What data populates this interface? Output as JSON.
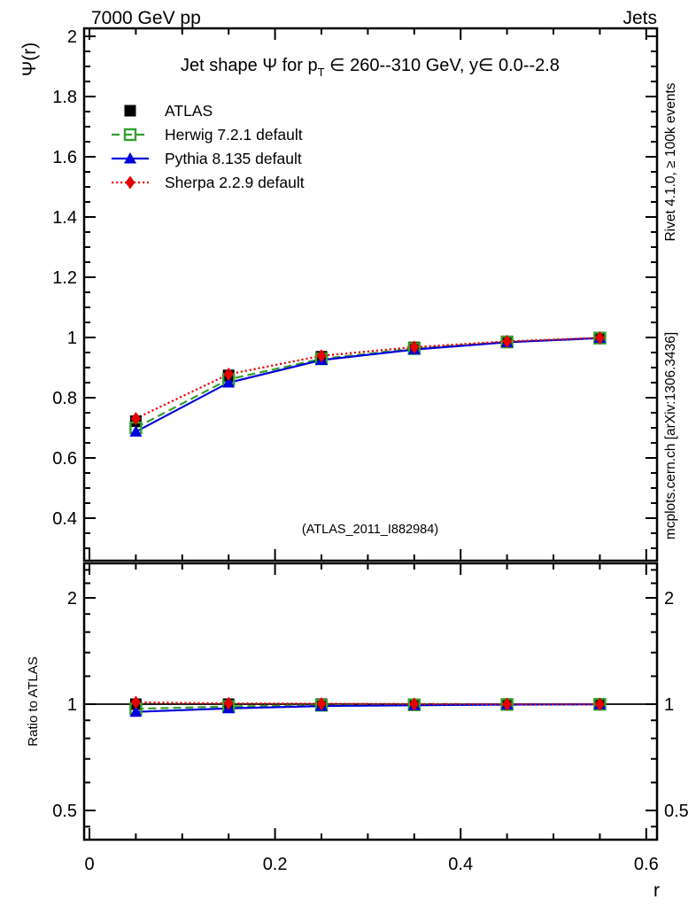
{
  "header": {
    "left_title": "7000 GeV pp",
    "right_title": "Jets"
  },
  "side_captions": {
    "top": "Rivet 4.1.0, ≥ 100k events",
    "bottom": "mcplots.cern.ch [arXiv:1306.3436]"
  },
  "watermark": "(ATLAS_2011_I882984)",
  "main_panel": {
    "title_prefix": "Jet shape Ψ for p",
    "title_sub": "T",
    "title_suffix": " ∈ 260--310 GeV, y∈ 0.0--2.8",
    "ylabel": "Ψ(r)"
  },
  "ratio_panel": {
    "ylabel": "Ratio to ATLAS"
  },
  "xlabel": "r",
  "chart_data": {
    "type": "line",
    "title": "Jet shape Ψ for pT ∈ 260--310 GeV, y∈ 0.0--2.8",
    "xlabel": "r",
    "ylabel": "Ψ(r)",
    "grid": false,
    "legend_position": "top-left",
    "x": [
      0.05,
      0.15,
      0.25,
      0.35,
      0.45,
      0.55
    ],
    "x_axis": {
      "xlim": [
        -0.006,
        0.612
      ],
      "xticks_major": [
        0,
        0.2,
        0.4,
        0.6
      ],
      "xtick_labels": [
        "0",
        "0.2",
        "0.4",
        "0.6"
      ],
      "xminor_step": 0.05
    },
    "main_axis": {
      "scale": "linear",
      "ylim": [
        0.26,
        2.03
      ],
      "yticks_major": [
        2,
        1.8,
        1.6,
        1.4,
        1.2,
        1,
        0.8,
        0.6,
        0.4
      ],
      "ytick_labels": [
        "2",
        "1.8",
        "1.6",
        "1.4",
        "1.2",
        "1",
        "0.8",
        "0.6",
        "0.4"
      ],
      "yminor_step": 0.05
    },
    "ratio_axis": {
      "scale": "log",
      "ylim": [
        0.413,
        2.5
      ],
      "yticks_major": [
        2,
        1,
        0.5
      ],
      "ytick_labels": [
        "2",
        "1",
        "0.5"
      ],
      "yminors": [
        2.4,
        2.2,
        1.8,
        1.6,
        1.4,
        1.2,
        0.9,
        0.8,
        0.7,
        0.6,
        0.45
      ],
      "reference_line": 1.0
    },
    "series": [
      {
        "name": "ATLAS",
        "color": "#000000",
        "marker": "square-filled",
        "line": "none",
        "values": [
          0.722,
          0.874,
          0.936,
          0.967,
          0.987,
          0.999
        ],
        "ratio": [
          1,
          1,
          1,
          1,
          1,
          1
        ]
      },
      {
        "name": "Herwig 7.2.1 default",
        "color": "#33a02c",
        "marker": "square-open",
        "line": "dashed",
        "values": [
          0.7,
          0.861,
          0.929,
          0.963,
          0.985,
          0.998
        ],
        "ratio": [
          0.97,
          0.985,
          0.993,
          0.996,
          0.998,
          0.999
        ]
      },
      {
        "name": "Pythia 8.135 default",
        "color": "#0000dd",
        "marker": "triangle-filled",
        "line": "solid",
        "values": [
          0.687,
          0.85,
          0.925,
          0.96,
          0.984,
          0.998
        ],
        "ratio": [
          0.951,
          0.973,
          0.988,
          0.993,
          0.997,
          0.999
        ]
      },
      {
        "name": "Sherpa 2.2.9 default",
        "color": "#e60000",
        "marker": "diamond-filled",
        "line": "dotted",
        "values": [
          0.731,
          0.878,
          0.939,
          0.968,
          0.987,
          0.999
        ],
        "ratio": [
          1.012,
          1.005,
          1.003,
          1.001,
          1.0,
          1.0
        ]
      }
    ]
  }
}
